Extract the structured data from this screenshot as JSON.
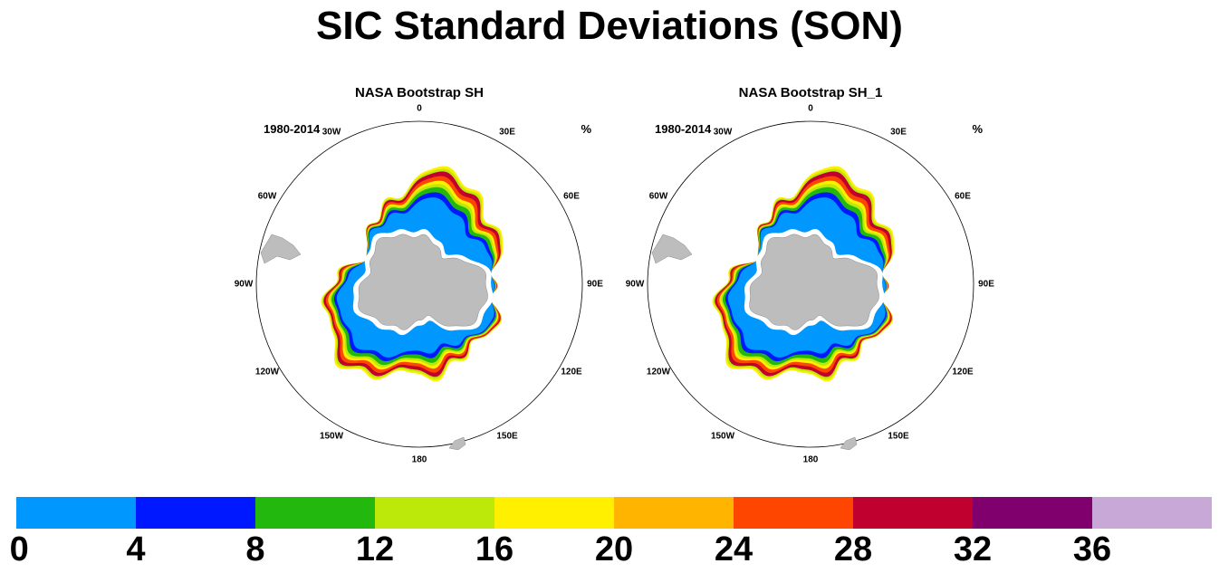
{
  "title": "SIC Standard Deviations (SON)",
  "panels": [
    {
      "title": "NASA Bootstrap SH",
      "period": "1980-2014",
      "unit": "%",
      "longitude_labels": [
        "0",
        "30E",
        "60E",
        "90E",
        "120E",
        "150E",
        "180",
        "150W",
        "120W",
        "90W",
        "60W",
        "30W"
      ]
    },
    {
      "title": "NASA Bootstrap SH_1",
      "period": "1980-2014",
      "unit": "%",
      "longitude_labels": [
        "0",
        "30E",
        "60E",
        "90E",
        "120E",
        "150E",
        "180",
        "150W",
        "120W",
        "90W",
        "60W",
        "30W"
      ]
    }
  ],
  "colorbar": {
    "colors": [
      "#0098ff",
      "#0018ff",
      "#23b80e",
      "#bce80a",
      "#fff000",
      "#ffb400",
      "#ff4600",
      "#c0002e",
      "#80006e",
      "#c8a8d6"
    ],
    "labels": [
      "0",
      "4",
      "8",
      "12",
      "16",
      "20",
      "24",
      "28",
      "32",
      "36"
    ]
  },
  "map_colors": {
    "land": "#bdbdbd",
    "coast_gap": "#ffffff"
  }
}
